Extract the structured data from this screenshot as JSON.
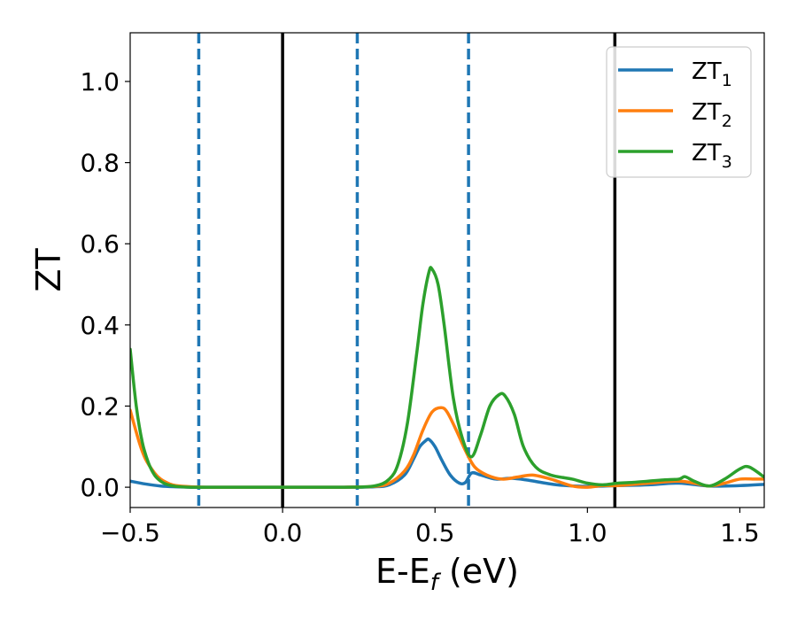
{
  "chart_data": {
    "type": "line",
    "xlabel": "E-E",
    "xlabel_sub": "f",
    "xlabel_unit": " (eV)",
    "ylabel": "ZT",
    "xlim": [
      -0.5,
      1.58
    ],
    "ylim": [
      -0.05,
      1.12
    ],
    "xticks": [
      {
        "value": -0.5,
        "label": "−0.5"
      },
      {
        "value": 0.0,
        "label": "0.0"
      },
      {
        "value": 0.5,
        "label": "0.5"
      },
      {
        "value": 1.0,
        "label": "1.0"
      },
      {
        "value": 1.5,
        "label": "1.5"
      }
    ],
    "yticks": [
      {
        "value": 0.0,
        "label": "0.0"
      },
      {
        "value": 0.2,
        "label": "0.2"
      },
      {
        "value": 0.4,
        "label": "0.4"
      },
      {
        "value": 0.6,
        "label": "0.6"
      },
      {
        "value": 0.8,
        "label": "0.8"
      },
      {
        "value": 1.0,
        "label": "1.0"
      }
    ],
    "grid": false,
    "legend_position": "top-right",
    "vlines_solid": [
      0.0,
      1.09
    ],
    "vlines_dashed": [
      -0.275,
      0.245,
      0.61
    ],
    "vline_solid_color": "#000000",
    "vline_dashed_color": "#1f77b4",
    "series": [
      {
        "name": "ZT",
        "sub": "1",
        "color": "#1f77b4",
        "x": [
          -0.5,
          -0.45,
          -0.4,
          -0.35,
          -0.3,
          -0.25,
          -0.2,
          0.0,
          0.2,
          0.3,
          0.35,
          0.4,
          0.43,
          0.45,
          0.47,
          0.48,
          0.5,
          0.52,
          0.55,
          0.58,
          0.6,
          0.62,
          0.65,
          0.7,
          0.75,
          0.8,
          0.9,
          1.0,
          1.1,
          1.2,
          1.3,
          1.4,
          1.5,
          1.58
        ],
        "y": [
          0.015,
          0.008,
          0.003,
          0.001,
          0.0,
          0.0,
          0.0,
          0.0,
          0.0,
          0.001,
          0.006,
          0.03,
          0.07,
          0.1,
          0.115,
          0.118,
          0.1,
          0.07,
          0.03,
          0.01,
          0.012,
          0.035,
          0.03,
          0.02,
          0.022,
          0.018,
          0.006,
          0.002,
          0.004,
          0.006,
          0.01,
          0.003,
          0.004,
          0.007
        ]
      },
      {
        "name": "ZT",
        "sub": "2",
        "color": "#ff7f0e",
        "x": [
          -0.5,
          -0.47,
          -0.45,
          -0.42,
          -0.4,
          -0.37,
          -0.35,
          -0.3,
          -0.25,
          -0.2,
          0.0,
          0.2,
          0.3,
          0.35,
          0.4,
          0.43,
          0.46,
          0.49,
          0.52,
          0.54,
          0.57,
          0.6,
          0.63,
          0.67,
          0.72,
          0.77,
          0.82,
          0.88,
          0.95,
          1.0,
          1.05,
          1.1,
          1.2,
          1.3,
          1.35,
          1.4,
          1.45,
          1.5,
          1.55,
          1.58
        ],
        "y": [
          0.19,
          0.11,
          0.07,
          0.035,
          0.02,
          0.008,
          0.004,
          0.001,
          0.0,
          0.0,
          0.0,
          0.0,
          0.002,
          0.01,
          0.04,
          0.08,
          0.14,
          0.185,
          0.196,
          0.185,
          0.14,
          0.09,
          0.05,
          0.03,
          0.02,
          0.025,
          0.03,
          0.02,
          0.003,
          0.0,
          0.004,
          0.004,
          0.01,
          0.015,
          0.01,
          0.003,
          0.01,
          0.02,
          0.02,
          0.02
        ]
      },
      {
        "name": "ZT",
        "sub": "3",
        "color": "#2ca02c",
        "x": [
          -0.5,
          -0.48,
          -0.46,
          -0.44,
          -0.42,
          -0.4,
          -0.38,
          -0.35,
          -0.3,
          -0.25,
          -0.2,
          0.0,
          0.2,
          0.3,
          0.35,
          0.38,
          0.41,
          0.44,
          0.46,
          0.48,
          0.49,
          0.51,
          0.53,
          0.56,
          0.59,
          0.62,
          0.65,
          0.68,
          0.71,
          0.73,
          0.76,
          0.79,
          0.83,
          0.88,
          0.95,
          1.0,
          1.05,
          1.1,
          1.15,
          1.2,
          1.25,
          1.3,
          1.32,
          1.35,
          1.4,
          1.45,
          1.5,
          1.53,
          1.58
        ],
        "y": [
          0.34,
          0.2,
          0.11,
          0.06,
          0.03,
          0.015,
          0.007,
          0.002,
          0.0,
          0.0,
          0.0,
          0.0,
          0.0,
          0.003,
          0.02,
          0.06,
          0.16,
          0.33,
          0.45,
          0.53,
          0.538,
          0.5,
          0.4,
          0.22,
          0.12,
          0.075,
          0.13,
          0.2,
          0.228,
          0.225,
          0.18,
          0.1,
          0.05,
          0.03,
          0.02,
          0.01,
          0.006,
          0.01,
          0.012,
          0.015,
          0.018,
          0.02,
          0.026,
          0.015,
          0.003,
          0.02,
          0.045,
          0.05,
          0.025
        ]
      }
    ]
  }
}
